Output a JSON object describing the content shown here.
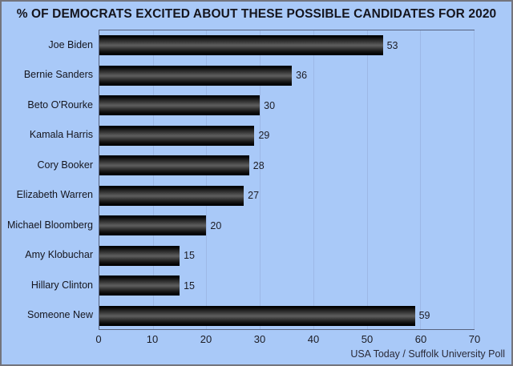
{
  "title": "% OF DEMOCRATS EXCITED ABOUT THESE POSSIBLE CANDIDATES FOR 2020",
  "source": "USA Today / Suffolk University Poll",
  "colors": {
    "background": "#a9c9f8",
    "plot_border": "#56627f",
    "gridline": "#9db8e6",
    "bar_top": "#000000",
    "bar_highlight": "#5d5d5d",
    "text": "#15151d"
  },
  "chart_data": {
    "type": "bar",
    "orientation": "horizontal",
    "title": "% OF DEMOCRATS EXCITED ABOUT THESE POSSIBLE CANDIDATES FOR 2020",
    "categories": [
      "Joe Biden",
      "Bernie Sanders",
      "Beto O'Rourke",
      "Kamala Harris",
      "Cory Booker",
      "Elizabeth Warren",
      "Michael Bloomberg",
      "Amy Klobuchar",
      "Hillary Clinton",
      "Someone New"
    ],
    "values": [
      53,
      36,
      30,
      29,
      28,
      27,
      20,
      15,
      15,
      59
    ],
    "data_labels": [
      53,
      36,
      30,
      29,
      28,
      27,
      20,
      15,
      15,
      59
    ],
    "xlabel": "",
    "ylabel": "",
    "xlim": [
      0,
      70
    ],
    "xticks": [
      0,
      10,
      20,
      30,
      40,
      50,
      60,
      70
    ],
    "grid": true,
    "legend": false,
    "source": "USA Today / Suffolk University Poll"
  }
}
